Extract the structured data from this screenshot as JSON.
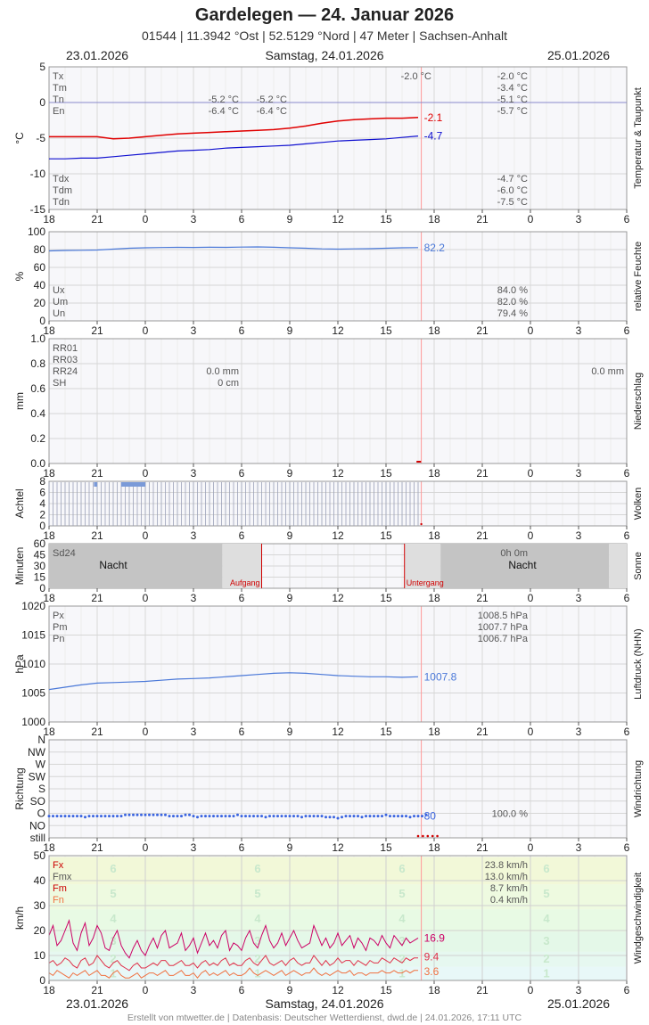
{
  "header": {
    "title": "Gardelegen  —  24. Januar 2026",
    "subtitle": "01544  |  11.3942 °Ost  |  52.5129 °Nord  |  47 Meter  |  Sachsen-Anhalt",
    "date_left": "23.01.2026",
    "date_center": "Samstag, 24.01.2026",
    "date_right": "25.01.2026"
  },
  "footer": {
    "date_left": "23.01.2026",
    "date_center": "Samstag, 24.01.2026",
    "date_right": "25.01.2026",
    "credit": "Erstellt von mtwetter.de | Datenbasis: Deutscher Wetterdienst, dwd.de | 24.01.2026, 17:11 UTC"
  },
  "colors": {
    "temp": "#e00000",
    "dew": "#1010d0",
    "humidity": "#4a78d8",
    "pressure": "#4a78d8",
    "wind_dir": "#3a64e0",
    "wind_fx": "#cc0066",
    "wind_fm": "#e0304a",
    "wind_fn": "#f07040",
    "night": "#c8c8c8",
    "sun_line": "#d00000",
    "cloud_bar": "#7a9ad8",
    "now_line": "#ff9999"
  },
  "chart_data": [
    {
      "id": "temperature",
      "type": "line",
      "ylabel": "°C",
      "side_label": "Temperatur & Taupunkt",
      "ylim": [
        -15,
        5
      ],
      "yticks": [
        "5",
        "0",
        "-5",
        "-10",
        "-15"
      ],
      "x_ticks": [
        "18",
        "21",
        "0",
        "3",
        "6",
        "9",
        "12",
        "15",
        "18",
        "21",
        "0",
        "3",
        "6"
      ],
      "series": [
        {
          "name": "Tx/Tm/Tn",
          "color": "#e00000",
          "start_hour": 18,
          "step_hours": 1,
          "values": [
            -4.8,
            -4.8,
            -4.8,
            -4.8,
            -5.1,
            -5.0,
            -4.8,
            -4.6,
            -4.4,
            -4.3,
            -4.2,
            -4.1,
            -4.0,
            -3.9,
            -3.8,
            -3.6,
            -3.3,
            -2.9,
            -2.6,
            -2.4,
            -2.3,
            -2.2,
            -2.2,
            -2.1
          ]
        },
        {
          "name": "Tdx/Tdm/Tdn",
          "color": "#1010d0",
          "start_hour": 18,
          "step_hours": 1,
          "values": [
            -7.9,
            -7.9,
            -7.8,
            -7.8,
            -7.6,
            -7.4,
            -7.2,
            -7.0,
            -6.8,
            -6.7,
            -6.6,
            -6.4,
            -6.3,
            -6.2,
            -6.1,
            -6.0,
            -5.8,
            -5.6,
            -5.4,
            -5.3,
            -5.2,
            -5.1,
            -4.9,
            -4.7
          ]
        }
      ],
      "end_labels": [
        {
          "text": "-2.1",
          "color": "#e00000",
          "value": -2.1
        },
        {
          "text": "-4.7",
          "color": "#1010d0",
          "value": -4.7
        }
      ],
      "label_rows_top": [
        "Tx",
        "Tm",
        "Tn",
        "En"
      ],
      "label_rows_bottom": [
        "Tdx",
        "Tdm",
        "Tdn"
      ],
      "day1_values": {
        "Tn": "-5.2 °C",
        "En": "-6.4 °C"
      },
      "day1b_values": {
        "Tn": "-5.2 °C",
        "En": "-6.4 °C"
      },
      "day2_values": {
        "Tx": "-2.0 °C"
      },
      "day3_values": {
        "Tx": "-2.0 °C",
        "Tm": "-3.4 °C",
        "Tn": "-5.1 °C",
        "En": "-5.7 °C",
        "Tdx": "-4.7 °C",
        "Tdm": "-6.0 °C",
        "Tdn": "-7.5 °C"
      }
    },
    {
      "id": "humidity",
      "type": "line",
      "ylabel": "%",
      "side_label": "relative Feuchte",
      "ylim": [
        0,
        100
      ],
      "yticks": [
        "100",
        "80",
        "60",
        "40",
        "20",
        "0"
      ],
      "x_ticks": [
        "18",
        "21",
        "0",
        "3",
        "6",
        "9",
        "12",
        "15",
        "18",
        "21",
        "0",
        "3",
        "6"
      ],
      "series": [
        {
          "name": "rF",
          "color": "#4a78d8",
          "start_hour": 18,
          "step_hours": 1,
          "values": [
            78.5,
            79.0,
            79.2,
            79.5,
            80.5,
            81.5,
            82.0,
            82.3,
            82.5,
            82.4,
            82.6,
            82.5,
            82.8,
            83.0,
            82.6,
            82.0,
            81.5,
            80.8,
            80.5,
            80.8,
            81.0,
            81.5,
            82.0,
            82.2
          ]
        }
      ],
      "end_labels": [
        {
          "text": "82.2",
          "color": "#4a78d8",
          "value": 82.2
        }
      ],
      "label_rows_bottom": [
        "Ux",
        "Um",
        "Un"
      ],
      "day3_values": {
        "Ux": "84.0 %",
        "Um": "82.0 %",
        "Un": "79.4 %"
      }
    },
    {
      "id": "precipitation",
      "type": "bar",
      "ylabel": "mm",
      "side_label": "Niederschlag",
      "ylim": [
        0,
        1.0
      ],
      "yticks": [
        "1.0",
        "0.8",
        "0.6",
        "0.4",
        "0.2",
        "0.0"
      ],
      "x_ticks": [
        "18",
        "21",
        "0",
        "3",
        "6",
        "9",
        "12",
        "15",
        "18",
        "21",
        "0",
        "3",
        "6"
      ],
      "values": [],
      "label_rows_top": [
        "RR01",
        "RR03",
        "RR24",
        "SH"
      ],
      "day1_values": {
        "RR24": "0.0 mm",
        "SH": "0 cm"
      },
      "day3_values": {
        "RR24": "0.0 mm"
      }
    },
    {
      "id": "clouds",
      "type": "bar",
      "ylabel": "Achtel",
      "side_label": "Wolken",
      "ylim": [
        0,
        8
      ],
      "yticks": [
        "8",
        "6",
        "4",
        "2",
        "0"
      ],
      "x_ticks": [
        "18",
        "21",
        "0",
        "3",
        "6",
        "9",
        "12",
        "15",
        "18",
        "21",
        "0",
        "3",
        "6"
      ],
      "observed_hours": [
        18,
        41
      ],
      "patches": [
        {
          "start_hour": 20.8,
          "end_hour": 21.0,
          "octas": 8
        },
        {
          "start_hour": 22.5,
          "end_hour": 24.0,
          "octas": 8
        }
      ]
    },
    {
      "id": "sunshine",
      "type": "bar",
      "ylabel": "Minuten",
      "side_label": "Sonne",
      "ylim": [
        0,
        60
      ],
      "yticks": [
        "60",
        "45",
        "30",
        "15",
        "0"
      ],
      "x_ticks": [
        "18",
        "21",
        "0",
        "3",
        "6",
        "9",
        "12",
        "15",
        "18",
        "21",
        "0",
        "3",
        "6"
      ],
      "sunrise_hour": 31.25,
      "sunset_hour": 40.15,
      "sunrise_label": "Aufgang",
      "sunset_label": "Untergang",
      "night_label": "Nacht",
      "sd_label": "Sd24",
      "sd_value": "0h 0m"
    },
    {
      "id": "pressure",
      "type": "line",
      "ylabel": "hPa",
      "side_label": "Luftdruck (NHN)",
      "ylim": [
        1000,
        1020
      ],
      "yticks": [
        "1020",
        "1015",
        "1010",
        "1005",
        "1000"
      ],
      "x_ticks": [
        "18",
        "21",
        "0",
        "3",
        "6",
        "9",
        "12",
        "15",
        "18",
        "21",
        "0",
        "3",
        "6"
      ],
      "series": [
        {
          "name": "P",
          "color": "#4a78d8",
          "start_hour": 18,
          "step_hours": 1,
          "values": [
            1005.6,
            1006.0,
            1006.4,
            1006.7,
            1006.8,
            1006.9,
            1007.0,
            1007.2,
            1007.4,
            1007.5,
            1007.6,
            1007.8,
            1008.0,
            1008.2,
            1008.4,
            1008.5,
            1008.4,
            1008.2,
            1008.0,
            1007.9,
            1007.8,
            1007.8,
            1007.7,
            1007.8
          ]
        }
      ],
      "end_labels": [
        {
          "text": "1007.8",
          "color": "#4a78d8",
          "value": 1007.8
        }
      ],
      "label_rows_top": [
        "Px",
        "Pm",
        "Pn"
      ],
      "day3_values": {
        "Px": "1008.5 hPa",
        "Pm": "1007.7 hPa",
        "Pn": "1006.7 hPa"
      }
    },
    {
      "id": "wind_direction",
      "type": "scatter",
      "ylabel": "Richtung",
      "side_label": "Windrichtung",
      "yticks": [
        "N",
        "NW",
        "W",
        "SW",
        "S",
        "SO",
        "O",
        "NO",
        "still"
      ],
      "x_ticks": [
        "18",
        "21",
        "0",
        "3",
        "6",
        "9",
        "12",
        "15",
        "18",
        "21",
        "0",
        "3",
        "6"
      ],
      "series": [
        {
          "name": "dir",
          "color": "#3a64e0",
          "start_hour": 18,
          "step_hours": 0.25,
          "values": [
            80,
            80,
            80,
            80,
            80,
            80,
            80,
            80,
            80,
            76,
            80,
            80,
            80,
            80,
            80,
            80,
            80,
            80,
            80,
            84,
            84,
            84,
            84,
            84,
            84,
            84,
            84,
            84,
            84,
            84,
            80,
            80,
            80,
            80,
            84,
            84,
            80,
            76,
            80,
            80,
            80,
            80,
            80,
            80,
            80,
            80,
            80,
            84,
            80,
            80,
            80,
            80,
            80,
            80,
            76,
            80,
            80,
            80,
            80,
            80,
            80,
            80,
            80,
            76,
            80,
            80,
            80,
            80,
            80,
            76,
            76,
            76,
            72,
            76,
            80,
            80,
            80,
            80,
            76,
            80,
            80,
            80,
            80,
            80,
            84,
            80,
            80,
            80,
            80,
            80,
            76,
            80,
            80,
            80,
            84
          ]
        }
      ],
      "end_labels": [
        {
          "text": "80",
          "color": "#3a64e0",
          "value": 80
        }
      ],
      "calm_hours": [
        17.75,
        18.0
      ],
      "day3_value": "100.0 %"
    },
    {
      "id": "wind_speed",
      "type": "line",
      "ylabel": "km/h",
      "side_label": "Windgeschwindigkeit",
      "ylim": [
        0,
        50
      ],
      "yticks": [
        "50",
        "40",
        "30",
        "20",
        "10",
        "0"
      ],
      "x_ticks": [
        "18",
        "21",
        "0",
        "3",
        "6",
        "9",
        "12",
        "15",
        "18",
        "21",
        "0",
        "3",
        "6"
      ],
      "beaufort_labels": [
        "6",
        "5",
        "4",
        "3",
        "2",
        "1"
      ],
      "series": [
        {
          "name": "Fx",
          "color": "#cc0066",
          "start_hour": 18,
          "step_hours": 0.25,
          "values": [
            18,
            22,
            14,
            16,
            20,
            24,
            15,
            12,
            19,
            23,
            14,
            17,
            22,
            19,
            13,
            12,
            17,
            20,
            14,
            11,
            9,
            13,
            16,
            12,
            10,
            14,
            17,
            13,
            18,
            20,
            13,
            14,
            15,
            19,
            12,
            14,
            17,
            11,
            15,
            19,
            14,
            16,
            13,
            18,
            20,
            12,
            15,
            14,
            12,
            17,
            20,
            15,
            13,
            18,
            22,
            16,
            13,
            15,
            19,
            14,
            17,
            20,
            16,
            13,
            14,
            15,
            22,
            18,
            14,
            17,
            13,
            15,
            19,
            14,
            16,
            18,
            13,
            17,
            15,
            12,
            17,
            16,
            14,
            18,
            15,
            13,
            18,
            16,
            14,
            17,
            15,
            16,
            17
          ]
        },
        {
          "name": "Fm",
          "color": "#e0304a",
          "start_hour": 18,
          "step_hours": 0.25,
          "values": [
            7,
            8,
            6,
            7,
            9,
            8,
            6,
            5,
            8,
            9,
            6,
            7,
            10,
            8,
            6,
            5,
            7,
            8,
            6,
            5,
            4,
            6,
            7,
            5,
            5,
            6,
            7,
            6,
            8,
            8,
            6,
            6,
            7,
            8,
            6,
            6,
            7,
            5,
            7,
            8,
            6,
            7,
            6,
            8,
            9,
            6,
            7,
            6,
            6,
            8,
            9,
            7,
            6,
            8,
            10,
            7,
            6,
            7,
            8,
            6,
            8,
            9,
            7,
            6,
            7,
            7,
            10,
            8,
            6,
            8,
            6,
            7,
            9,
            7,
            8,
            8,
            6,
            8,
            7,
            6,
            8,
            7,
            7,
            9,
            8,
            7,
            9,
            8,
            7,
            9,
            8,
            9,
            9
          ]
        },
        {
          "name": "Fn",
          "color": "#f07040",
          "start_hour": 18,
          "step_hours": 0.25,
          "values": [
            3,
            2,
            4,
            3,
            2,
            1,
            3,
            2,
            3,
            4,
            2,
            3,
            4,
            2,
            2,
            1,
            3,
            4,
            2,
            1,
            1,
            2,
            3,
            1,
            2,
            3,
            3,
            2,
            3,
            4,
            2,
            2,
            3,
            4,
            2,
            2,
            3,
            1,
            3,
            4,
            2,
            3,
            2,
            3,
            4,
            2,
            3,
            2,
            2,
            3,
            5,
            3,
            2,
            3,
            4,
            3,
            2,
            3,
            4,
            2,
            3,
            4,
            3,
            2,
            3,
            3,
            5,
            3,
            2,
            3,
            2,
            3,
            4,
            3,
            3,
            4,
            2,
            3,
            3,
            2,
            3,
            3,
            3,
            4,
            3,
            3,
            4,
            3,
            3,
            4,
            3,
            4,
            4
          ]
        }
      ],
      "end_labels": [
        {
          "text": "16.9",
          "color": "#cc0066",
          "value": 16.9
        },
        {
          "text": "9.4",
          "color": "#e0304a",
          "value": 9.4
        },
        {
          "text": "3.6",
          "color": "#f07040",
          "value": 3.6
        }
      ],
      "label_rows_top": [
        "Fx",
        "Fmx",
        "Fm",
        "Fn"
      ],
      "label_colors": [
        "#cc0000",
        "#555555",
        "#cc0000",
        "#f07040"
      ],
      "day3_values": {
        "Fx": "23.8 km/h",
        "Fmx": "13.0 km/h",
        "Fm": "8.7 km/h",
        "Fn": "0.4 km/h"
      }
    }
  ]
}
